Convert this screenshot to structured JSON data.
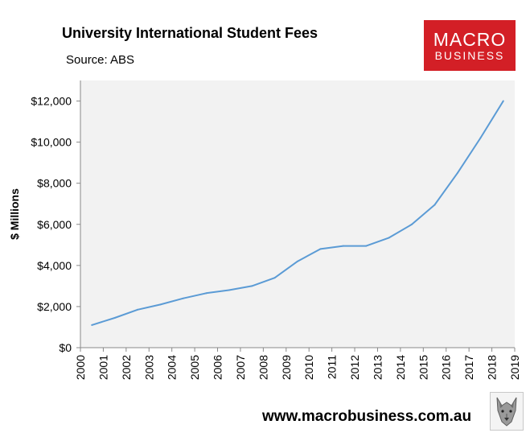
{
  "title": "University International Student Fees",
  "subtitle": "Source: ABS",
  "logo": {
    "line1": "MACRO",
    "line2": "BUSINESS",
    "color": "#d31f26",
    "text_color": "#ffffff"
  },
  "footer": {
    "url": "www.macrobusiness.com.au"
  },
  "wolf_icon": "wolf-logo-icon",
  "chart_data": {
    "type": "line",
    "title": "University International Student Fees",
    "subtitle": "Source: ABS",
    "xlabel": "",
    "ylabel": "$ Millions",
    "x": [
      2000.5,
      2001.5,
      2002.5,
      2003.5,
      2004.5,
      2005.5,
      2006.5,
      2007.5,
      2008.5,
      2009.5,
      2010.5,
      2011.5,
      2012.5,
      2013.5,
      2014.5,
      2015.5,
      2016.5,
      2017.5,
      2018.5
    ],
    "series": [
      {
        "values": [
          1100,
          1450,
          1850,
          2100,
          2400,
          2650,
          2800,
          3000,
          3400,
          4200,
          4800,
          4950,
          4950,
          5350,
          6000,
          6950,
          8500,
          10200,
          12000
        ],
        "color": "#5b9bd5"
      }
    ],
    "xlim": [
      2000,
      2019
    ],
    "ylim": [
      0,
      13000
    ],
    "x_ticks": [
      "2000",
      "2001",
      "2002",
      "2003",
      "2004",
      "2005",
      "2006",
      "2007",
      "2008",
      "2009",
      "2010",
      "2011",
      "2012",
      "2013",
      "2014",
      "2015",
      "2016",
      "2017",
      "2018",
      "2019"
    ],
    "y_ticks": [
      {
        "value": 0,
        "label": "$0"
      },
      {
        "value": 2000,
        "label": "$2,000"
      },
      {
        "value": 4000,
        "label": "$4,000"
      },
      {
        "value": 6000,
        "label": "$6,000"
      },
      {
        "value": 8000,
        "label": "$8,000"
      },
      {
        "value": 10000,
        "label": "$10,000"
      },
      {
        "value": 12000,
        "label": "$12,000"
      }
    ],
    "grid": false,
    "legend": "none",
    "plot_background": "#f2f2f2"
  }
}
